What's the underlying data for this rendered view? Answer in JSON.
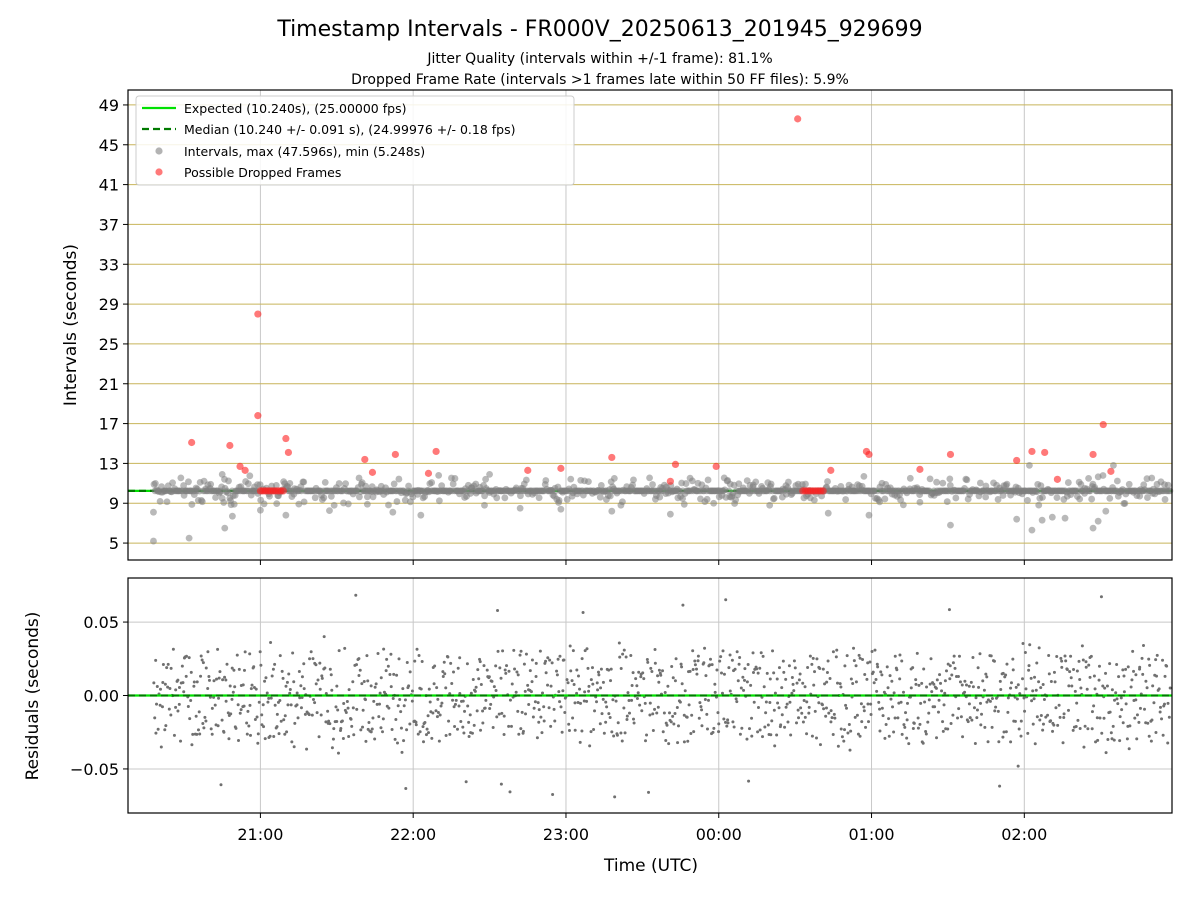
{
  "title": "Timestamp Intervals - FR000V_20250613_201945_929699",
  "subtitle_1": "Jitter Quality (intervals within +/-1 frame): 81.1%",
  "subtitle_2": "Dropped Frame Rate (intervals >1 frames late within 50 FF files): 5.9%",
  "colors": {
    "expected": "#00e000",
    "median": "#007a00",
    "intervals": "#808080",
    "dropped": "#ff2020",
    "hgrid_top": "#c8b45a",
    "vgrid": "#c8c8c8"
  },
  "chart_data": [
    {
      "type": "scatter",
      "ylabel": "Intervals (seconds)",
      "xlabel": "",
      "ylim": [
        3.3,
        50.5
      ],
      "yticks": [
        "5",
        "9",
        "13",
        "17",
        "21",
        "25",
        "29",
        "33",
        "37",
        "41",
        "45",
        "49"
      ],
      "xticks": [
        "21:00",
        "22:00",
        "23:00",
        "00:00",
        "01:00",
        "02:00"
      ],
      "xlim": [
        "20:08",
        "02:58"
      ],
      "grid": true,
      "legend_position": "upper-left",
      "legend": [
        {
          "label": "Expected (10.240s), (25.00000 fps)",
          "style": "solid-line"
        },
        {
          "label": "Median (10.240 +/- 0.091 s), (24.99976 +/- 0.18 fps)",
          "style": "dashed-line"
        },
        {
          "label": "Intervals, max (47.596s), min (5.248s)",
          "style": "gray-dot"
        },
        {
          "label": "Possible Dropped Frames",
          "style": "red-dot"
        }
      ],
      "expected_interval": 10.24,
      "median_interval": 10.24,
      "series": [
        {
          "name": "Possible Dropped Frames",
          "x": [
            "20:33",
            "20:48",
            "20:52",
            "20:54",
            "20:59",
            "20:59",
            "21:10",
            "21:11",
            "21:41",
            "21:44",
            "21:53",
            "22:06",
            "22:09",
            "22:45",
            "22:58",
            "23:18",
            "23:41",
            "23:43",
            "23:59",
            "00:31",
            "00:44",
            "00:58",
            "00:59",
            "01:19",
            "01:31",
            "01:57",
            "02:03",
            "02:08",
            "02:13",
            "02:27",
            "02:31",
            "02:34"
          ],
          "y": [
            15.1,
            14.8,
            12.7,
            12.3,
            28.0,
            17.8,
            15.5,
            14.1,
            13.4,
            12.1,
            13.9,
            12.0,
            14.2,
            12.3,
            12.5,
            13.6,
            11.2,
            12.9,
            12.7,
            47.6,
            12.3,
            14.2,
            13.9,
            12.4,
            13.9,
            13.3,
            14.2,
            14.1,
            11.4,
            13.9,
            16.9,
            12.2
          ]
        },
        {
          "name": "Possible Dropped Frames (cluster)",
          "x": [
            "21:00",
            "21:01",
            "21:02",
            "21:03",
            "21:04",
            "21:05",
            "21:06",
            "21:07",
            "21:08",
            "21:09",
            "00:33",
            "00:34",
            "00:35",
            "00:36",
            "00:37",
            "00:38",
            "00:39",
            "00:40",
            "00:41"
          ],
          "y": [
            10.24,
            10.24,
            10.24,
            10.24,
            10.24,
            10.24,
            10.24,
            10.24,
            10.24,
            10.24,
            10.24,
            10.24,
            10.24,
            10.24,
            10.24,
            10.24,
            10.24,
            10.24,
            10.24
          ]
        },
        {
          "name": "Intervals (outliers)",
          "x": [
            "20:18",
            "20:18",
            "20:32",
            "20:45",
            "20:46",
            "20:49",
            "21:00",
            "21:10",
            "21:42",
            "21:52",
            "22:03",
            "22:10",
            "22:28",
            "22:30",
            "22:42",
            "22:58",
            "23:18",
            "23:19",
            "23:41",
            "23:58",
            "00:20",
            "00:43",
            "00:57",
            "00:59",
            "01:19",
            "01:31",
            "01:57",
            "02:02",
            "02:03",
            "02:07",
            "02:11",
            "02:16",
            "02:27",
            "02:29",
            "02:32",
            "02:35"
          ],
          "y": [
            5.2,
            8.1,
            5.5,
            11.9,
            6.5,
            7.7,
            8.3,
            7.8,
            8.9,
            8.1,
            7.8,
            11.8,
            8.8,
            11.9,
            8.5,
            8.4,
            8.2,
            11.5,
            7.9,
            9.0,
            8.8,
            8.0,
            11.7,
            7.8,
            9.1,
            6.8,
            7.4,
            12.8,
            6.3,
            7.3,
            7.6,
            7.5,
            6.5,
            7.2,
            8.2,
            12.8
          ]
        }
      ]
    },
    {
      "type": "scatter",
      "ylabel": "Residuals (seconds)",
      "xlabel": "Time (UTC)",
      "ylim": [
        -0.08,
        0.08
      ],
      "yticks": [
        "0.05",
        "0.00",
        "−0.05"
      ],
      "xticks": [
        "21:00",
        "22:00",
        "23:00",
        "00:00",
        "01:00",
        "02:00"
      ],
      "grid": true,
      "residual_spread_seconds": 0.03,
      "residual_max": 0.075,
      "residual_min": -0.069
    }
  ]
}
